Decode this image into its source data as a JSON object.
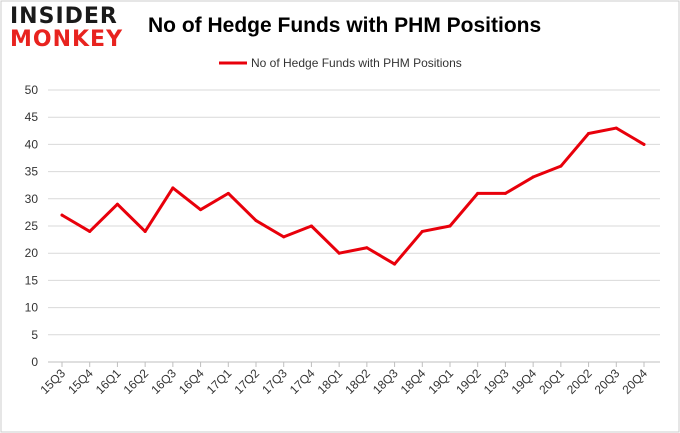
{
  "brand": {
    "line1": "INSIDER",
    "line2": "MONKEY",
    "accent": "#e8231f"
  },
  "chart_data": {
    "type": "line",
    "title": "No of Hedge Funds with PHM Positions",
    "xlabel": "",
    "ylabel": "",
    "categories": [
      "15Q3",
      "15Q4",
      "16Q1",
      "16Q2",
      "16Q3",
      "16Q4",
      "17Q1",
      "17Q2",
      "17Q3",
      "17Q4",
      "18Q1",
      "18Q2",
      "18Q3",
      "18Q4",
      "19Q1",
      "19Q2",
      "19Q3",
      "19Q4",
      "20Q1",
      "20Q2",
      "20Q3",
      "20Q4"
    ],
    "series": [
      {
        "name": "No of Hedge Funds with PHM Positions",
        "color": "#e8000b",
        "values": [
          27,
          24,
          29,
          24,
          32,
          28,
          31,
          26,
          23,
          25,
          20,
          21,
          18,
          24,
          25,
          31,
          31,
          34,
          36,
          42,
          43,
          40
        ]
      }
    ],
    "ylim": [
      0,
      50
    ],
    "yticks": [
      0,
      5,
      10,
      15,
      20,
      25,
      30,
      35,
      40,
      45,
      50
    ],
    "grid": true,
    "legend": "top-center"
  }
}
